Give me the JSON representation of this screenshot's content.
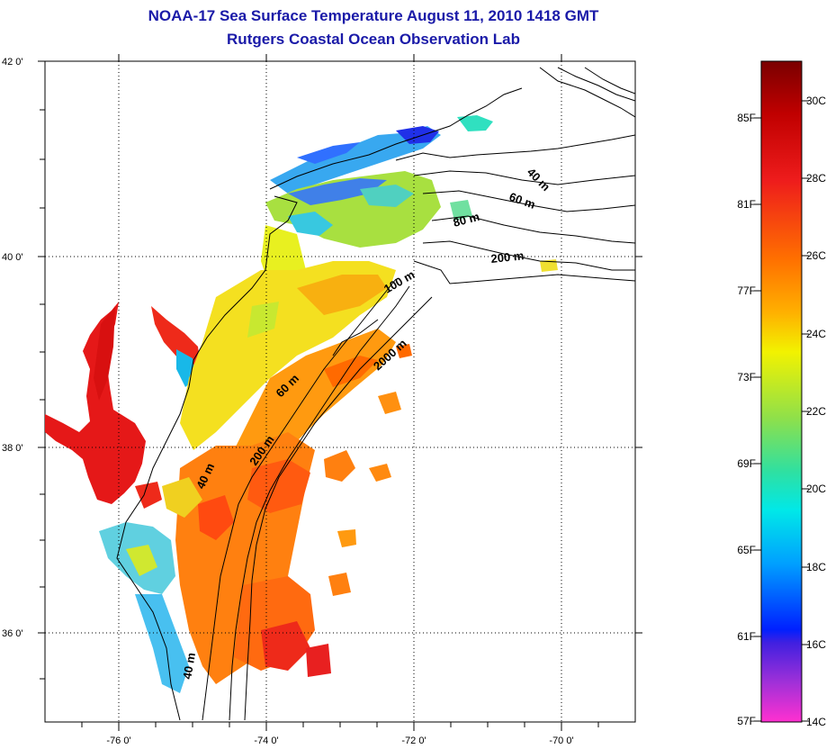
{
  "title_line1": "NOAA-17 Sea Surface Temperature August 11, 2010 1418 GMT",
  "title_line2": "Rutgers Coastal Ocean Observation Lab",
  "map": {
    "lon_ticks": [
      "-76 0'",
      "-74 0'",
      "-72 0'",
      "-70 0'"
    ],
    "lat_ticks": [
      "42 0'",
      "40 0'",
      "38 0'",
      "36 0'"
    ],
    "contour_labels": [
      "40 m",
      "60 m",
      "80 m",
      "200 m",
      "100 m",
      "2000 m",
      "60 m",
      "200 m",
      "40 m",
      "40 m"
    ]
  },
  "colorbar": {
    "fahrenheit_labels": [
      "85F",
      "81F",
      "77F",
      "73F",
      "69F",
      "65F",
      "61F",
      "57F"
    ],
    "celsius_labels": [
      "30C",
      "28C",
      "26C",
      "24C",
      "22C",
      "20C",
      "18C",
      "16C",
      "14C"
    ],
    "colors": {
      "top": "#7a0000",
      "red": "#ee1c1c",
      "orange": "#ff9900",
      "yellow": "#f2f200",
      "green": "#8fe04a",
      "cyan": "#00e8e8",
      "blue": "#0030ff",
      "violet": "#8a30d8",
      "magenta": "#ff30d0"
    }
  }
}
